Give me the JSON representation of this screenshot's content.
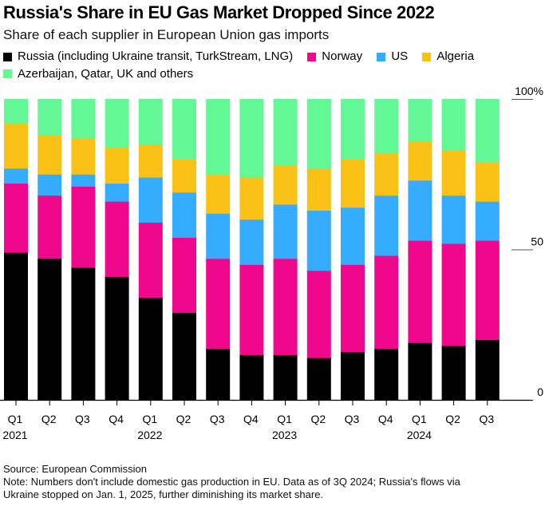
{
  "header": {
    "title": "Russia's Share in EU Gas Market Dropped Since 2022",
    "subtitle": "Share of each supplier in European Union gas imports"
  },
  "legend": [
    {
      "label": "Russia (including Ukraine transit, TurkStream, LNG)",
      "color": "#000000"
    },
    {
      "label": "Norway",
      "color": "#f0088c"
    },
    {
      "label": "US",
      "color": "#36acff"
    },
    {
      "label": "Algeria",
      "color": "#fac116"
    },
    {
      "label": "Azerbaijan, Qatar, UK and others",
      "color": "#64f796"
    }
  ],
  "chart_data": {
    "type": "bar",
    "stacked": true,
    "title": "Russia's Share in EU Gas Market Dropped Since 2022",
    "subtitle": "Share of each supplier in European Union gas imports",
    "xlabel": "",
    "ylabel": "",
    "ylim": [
      0,
      100
    ],
    "yticks": [
      {
        "value": 0,
        "label": "0"
      },
      {
        "value": 50,
        "label": "50"
      },
      {
        "value": 100,
        "label": "100%"
      }
    ],
    "grid": false,
    "legend_position": "top",
    "categories": [
      "Q1 2021",
      "Q2 2021",
      "Q3 2021",
      "Q4 2021",
      "Q1 2022",
      "Q2 2022",
      "Q3 2022",
      "Q4 2022",
      "Q1 2023",
      "Q2 2023",
      "Q3 2023",
      "Q4 2023",
      "Q1 2024",
      "Q2 2024",
      "Q3 2024"
    ],
    "tick_labels": [
      {
        "q": "Q1",
        "year": "2021"
      },
      {
        "q": "Q2",
        "year": ""
      },
      {
        "q": "Q3",
        "year": ""
      },
      {
        "q": "Q4",
        "year": ""
      },
      {
        "q": "Q1",
        "year": "2022"
      },
      {
        "q": "Q2",
        "year": ""
      },
      {
        "q": "Q3",
        "year": ""
      },
      {
        "q": "Q4",
        "year": ""
      },
      {
        "q": "Q1",
        "year": "2023"
      },
      {
        "q": "Q2",
        "year": ""
      },
      {
        "q": "Q3",
        "year": ""
      },
      {
        "q": "Q4",
        "year": ""
      },
      {
        "q": "Q1",
        "year": "2024"
      },
      {
        "q": "Q2",
        "year": ""
      },
      {
        "q": "Q3",
        "year": ""
      }
    ],
    "series": [
      {
        "name": "Russia (including Ukraine transit, TurkStream, LNG)",
        "color": "#000000",
        "values": [
          49,
          47,
          44,
          41,
          34,
          29,
          17,
          15,
          15,
          14,
          16,
          17,
          19,
          18,
          20
        ]
      },
      {
        "name": "Norway",
        "color": "#f0088c",
        "values": [
          23,
          21,
          27,
          25,
          25,
          25,
          30,
          30,
          32,
          29,
          29,
          31,
          34,
          34,
          33
        ]
      },
      {
        "name": "US",
        "color": "#36acff",
        "values": [
          5,
          7,
          4,
          6,
          15,
          15,
          15,
          15,
          18,
          20,
          19,
          20,
          20,
          16,
          13
        ]
      },
      {
        "name": "Algeria",
        "color": "#fac116",
        "values": [
          15,
          13,
          12,
          12,
          11,
          11,
          13,
          14,
          13,
          14,
          16,
          14,
          13,
          15,
          13
        ]
      },
      {
        "name": "Azerbaijan, Qatar, UK and others",
        "color": "#64f796",
        "values": [
          8,
          12,
          13,
          16,
          15,
          20,
          25,
          26,
          22,
          23,
          20,
          18,
          14,
          17,
          21
        ]
      }
    ]
  },
  "footer": {
    "source": "Source: European Commission",
    "note_line1": "Note: Numbers don't include domestic gas production in EU. Data as of 3Q 2024; Russia's flows via",
    "note_line2": "Ukraine stopped on Jan. 1, 2025, further diminishing its market share."
  }
}
